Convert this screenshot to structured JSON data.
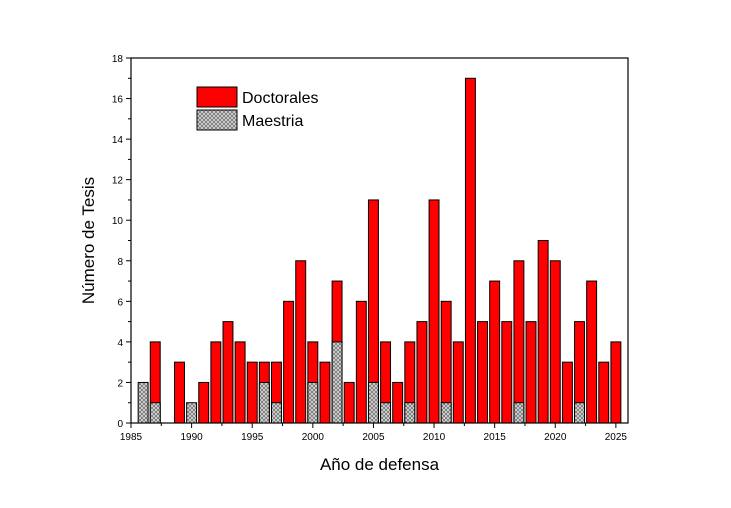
{
  "chart_data": {
    "type": "bar",
    "xlabel": "Año de defensa",
    "ylabel": "Número de Tesis",
    "xlim": [
      1985,
      2026
    ],
    "ylim": [
      0,
      18
    ],
    "x_ticks": [
      1985,
      1990,
      1995,
      2000,
      2005,
      2010,
      2015,
      2020,
      2025
    ],
    "y_ticks": [
      0,
      2,
      4,
      6,
      8,
      10,
      12,
      14,
      16,
      18
    ],
    "legend_position": "top-left",
    "grid": false,
    "colors": {
      "doctorales": "#ff0000",
      "maestria": "#c8c8c8",
      "outline": "#000000"
    },
    "series": [
      {
        "name": "Doctorales",
        "pattern": "solid",
        "points": [
          [
            1987,
            4
          ],
          [
            1989,
            3
          ],
          [
            1991,
            2
          ],
          [
            1992,
            4
          ],
          [
            1993,
            5
          ],
          [
            1994,
            4
          ],
          [
            1995,
            3
          ],
          [
            1996,
            3
          ],
          [
            1997,
            3
          ],
          [
            1998,
            6
          ],
          [
            1999,
            8
          ],
          [
            2000,
            4
          ],
          [
            2001,
            3
          ],
          [
            2002,
            7
          ],
          [
            2003,
            2
          ],
          [
            2004,
            6
          ],
          [
            2005,
            11
          ],
          [
            2006,
            4
          ],
          [
            2007,
            2
          ],
          [
            2008,
            4
          ],
          [
            2009,
            5
          ],
          [
            2010,
            11
          ],
          [
            2011,
            6
          ],
          [
            2012,
            4
          ],
          [
            2013,
            17
          ],
          [
            2014,
            5
          ],
          [
            2015,
            7
          ],
          [
            2016,
            5
          ],
          [
            2017,
            8
          ],
          [
            2018,
            5
          ],
          [
            2019,
            9
          ],
          [
            2020,
            8
          ],
          [
            2021,
            3
          ],
          [
            2022,
            5
          ],
          [
            2023,
            7
          ],
          [
            2024,
            3
          ],
          [
            2025,
            4
          ]
        ]
      },
      {
        "name": "Maestria",
        "pattern": "crosshatch",
        "points": [
          [
            1986,
            2
          ],
          [
            1987,
            1
          ],
          [
            1990,
            1
          ],
          [
            1996,
            2
          ],
          [
            1997,
            1
          ],
          [
            2000,
            2
          ],
          [
            2002,
            4
          ],
          [
            2005,
            2
          ],
          [
            2006,
            1
          ],
          [
            2008,
            1
          ],
          [
            2011,
            1
          ],
          [
            2017,
            1
          ],
          [
            2022,
            1
          ]
        ]
      }
    ]
  }
}
